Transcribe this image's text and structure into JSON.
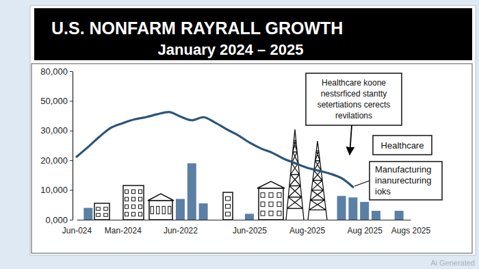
{
  "chart_data": {
    "type": "bar",
    "title": "U.S. NONFARM RAYRALL GROWTH",
    "subtitle": "January 2024 – 2025",
    "categories": [
      "Jun-024",
      null,
      null,
      null,
      "Man-2024",
      null,
      null,
      null,
      null,
      "Jun-2022",
      null,
      null,
      null,
      null,
      null,
      "Jun-2025",
      null,
      null,
      null,
      null,
      "Aug-2025",
      null,
      null,
      null,
      null,
      "Aug 2025",
      null,
      null,
      null,
      "Augs 2025"
    ],
    "series": [
      {
        "type": "bar",
        "color": "#5b80a5",
        "values": [
          null,
          4000,
          null,
          null,
          null,
          null,
          null,
          null,
          null,
          7000,
          19000,
          5500,
          null,
          null,
          null,
          2000,
          null,
          null,
          null,
          null,
          null,
          null,
          null,
          8000,
          7500,
          6000,
          3000,
          null,
          3000,
          null
        ]
      },
      {
        "type": "line",
        "color": "#2c5578",
        "values": [
          21200,
          24500,
          28000,
          32000,
          35000,
          37500,
          39000,
          41000,
          42500,
          39500,
          37000,
          39000,
          35500,
          31000,
          28500,
          26000,
          24000,
          22500,
          20500,
          19000,
          17500,
          16500,
          15500,
          14000,
          11000,
          null,
          null,
          null,
          null,
          null
        ]
      }
    ],
    "ylim": [
      0,
      80000
    ],
    "yticks": [
      {
        "value": 0,
        "label": "0,000"
      },
      {
        "value": 10000,
        "label": "10,000"
      },
      {
        "value": 20000,
        "label": "20,000"
      },
      {
        "value": 30000,
        "label": "30,000"
      },
      {
        "value": 50000,
        "label": "50,000"
      },
      {
        "value": 80000,
        "label": "80,000"
      }
    ],
    "annotations": [
      {
        "lines": [
          "Healthcare koone",
          "nestsrficed stantty",
          "setertiations cerects",
          "revilations"
        ]
      },
      {
        "lines": [
          "Healthcare"
        ]
      },
      {
        "lines": [
          "Manufacturing",
          "inanurecturing",
          "ioks"
        ]
      }
    ],
    "watermark": "Ai Generated"
  }
}
